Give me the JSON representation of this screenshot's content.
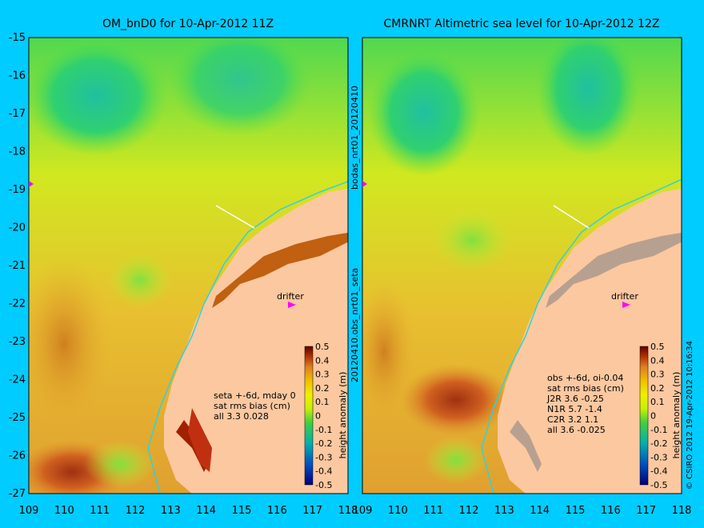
{
  "left_panel": {
    "title": "OM_bnD0 for 10-Apr-2012 11Z",
    "stats_lines": [
      "seta +-6d, mday 0",
      "sat rms bias (cm)",
      "all 3.3 0.028"
    ],
    "drifter_label": "drifter"
  },
  "right_panel": {
    "title": "CMRNRT Altimetric sea level  for 10-Apr-2012 12Z",
    "stats_lines": [
      "obs +-6d, oi-0.04",
      "sat rms bias (cm)",
      "J2R   3.6 -0.25",
      "N1R   5.7 -1.4",
      "C2R   3.2 1.1",
      "all 3.6 -0.025"
    ],
    "drifter_label": "drifter"
  },
  "middle_label": "20120410.obs_nrt01_seta",
  "middle_label_top": "bodas_nrt01_20120410",
  "right_margin_label": "© CSIRO 2012  19-Apr-2012 10:16:34",
  "axes": {
    "lon_ticks": [
      "109",
      "110",
      "111",
      "112",
      "113",
      "114",
      "115",
      "116",
      "117",
      "118"
    ],
    "lat_ticks": [
      "-15",
      "-16",
      "-17",
      "-18",
      "-19",
      "-20",
      "-21",
      "-22",
      "-23",
      "-24",
      "-25",
      "-26",
      "-27"
    ]
  },
  "colorbar": {
    "label": "height anomaly (m)",
    "ticks": [
      "0.5",
      "0.4",
      "0.3",
      "0.2",
      "0.1",
      "0",
      "-0.1",
      "-0.2",
      "-0.3",
      "-0.4",
      "-0.5"
    ],
    "colors": {
      "high": "#6a0000",
      "mid_high": "#e08020",
      "mid": "#c8f000",
      "low": "#00a0c0",
      "very_low": "#000080"
    }
  }
}
